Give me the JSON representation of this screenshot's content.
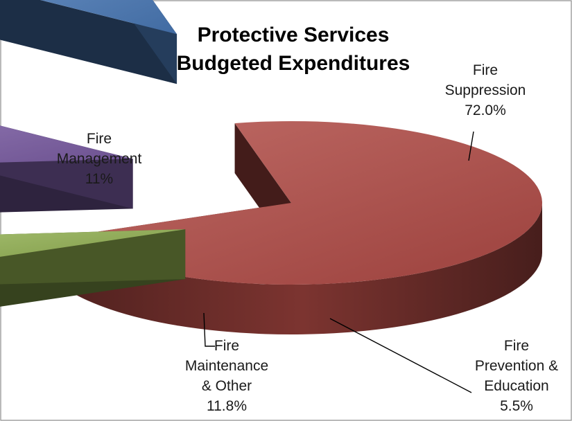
{
  "chart_data": {
    "type": "pie",
    "title_lines": [
      "Protective Services",
      "Budgeted Expenditures"
    ],
    "three_d": true,
    "exploded": true,
    "slices": [
      {
        "label_lines": [
          "Fire",
          "Suppression",
          "72.0%"
        ],
        "value": 72.0,
        "color": "#b14a45"
      },
      {
        "label_lines": [
          "Fire",
          "Prevention &",
          "Education",
          "5.5%"
        ],
        "value": 5.5,
        "color": "#8fae4e"
      },
      {
        "label_lines": [
          "Fire",
          "Maintenance",
          "& Other",
          "11.8%"
        ],
        "value": 11.8,
        "color": "#7a5ba3"
      },
      {
        "label_lines": [
          "Fire",
          "Management",
          "11%"
        ],
        "value": 11.0,
        "color": "#4a7ab8"
      }
    ]
  }
}
